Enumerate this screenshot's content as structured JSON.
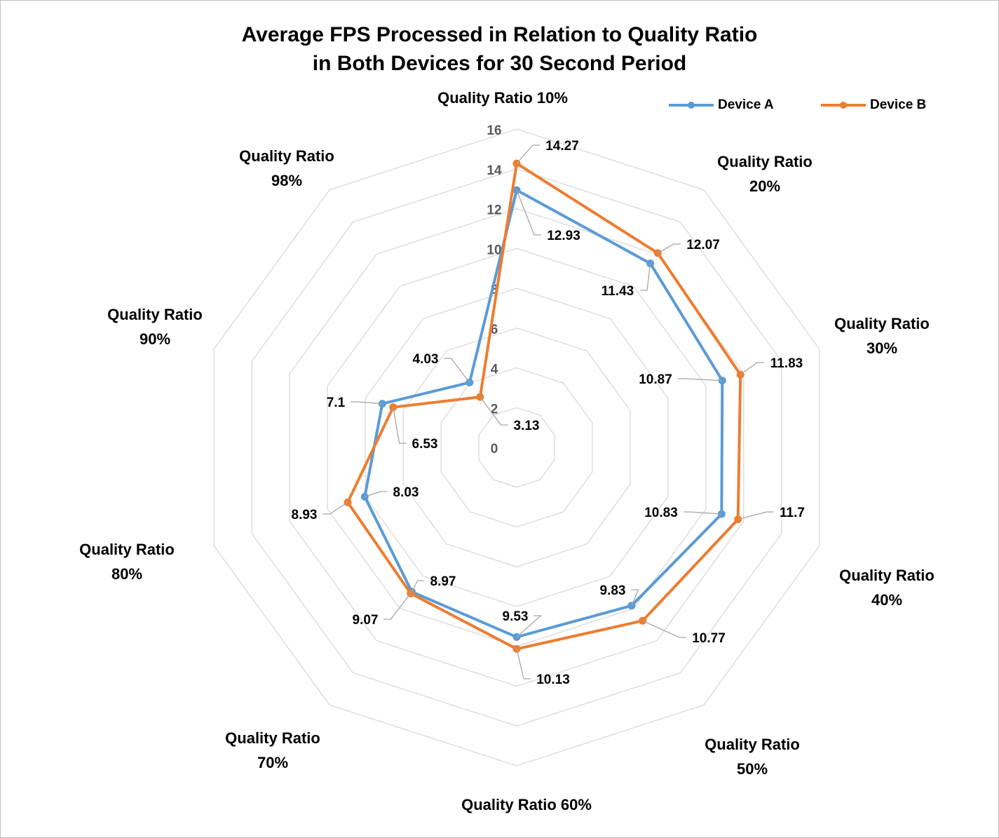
{
  "chart_data": {
    "type": "radar",
    "title": [
      "Average FPS Processed in Relation to Quality Ratio",
      "in Both Devices for 30 Second Period"
    ],
    "categories": [
      "Quality Ratio 10%",
      "Quality Ratio 20%",
      "Quality Ratio 30%",
      "Quality Ratio 40%",
      "Quality Ratio 50%",
      "Quality Ratio 60%",
      "Quality Ratio 70%",
      "Quality Ratio 80%",
      "Quality Ratio 90%",
      "Quality Ratio 98%"
    ],
    "axis_ticks": [
      "0",
      "2",
      "4",
      "6",
      "8",
      "10",
      "12",
      "14",
      "16"
    ],
    "rlim": [
      0,
      16
    ],
    "grid": true,
    "legend_position": "top-right",
    "series": [
      {
        "name": "Device A",
        "color": "#5b9bd5",
        "values": [
          12.93,
          11.43,
          10.87,
          10.83,
          9.83,
          9.53,
          8.97,
          8.03,
          7.1,
          4.03
        ],
        "labels": [
          "12.93",
          "11.43",
          "10.87",
          "10.83",
          "9.83",
          "9.53",
          "8.97",
          "8.03",
          "7.1",
          "4.03"
        ]
      },
      {
        "name": "Device B",
        "color": "#ed7d31",
        "values": [
          14.27,
          12.07,
          11.83,
          11.7,
          10.77,
          10.13,
          9.07,
          8.93,
          6.53,
          3.13
        ],
        "labels": [
          "14.27",
          "12.07",
          "11.83",
          "11.7",
          "10.77",
          "10.13",
          "9.07",
          "8.93",
          "6.53",
          "3.13"
        ]
      }
    ]
  }
}
